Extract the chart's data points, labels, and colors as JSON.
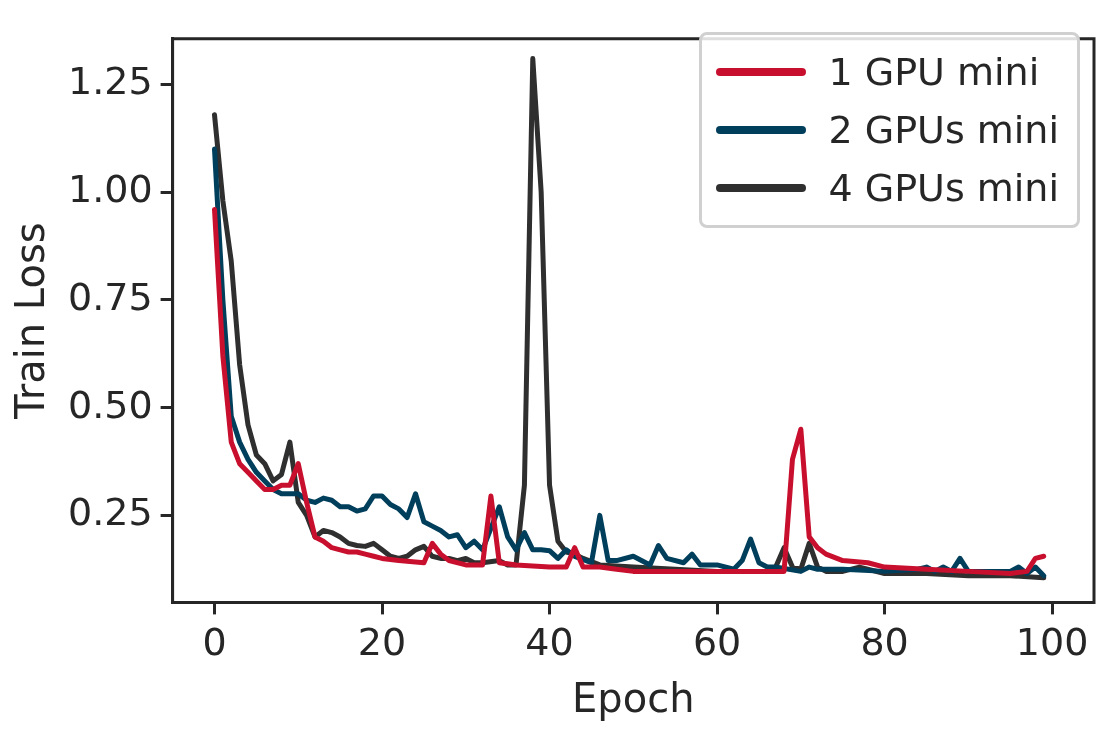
{
  "chart_data": {
    "type": "line",
    "xlabel": "Epoch",
    "ylabel": "Train Loss",
    "xlim": [
      -5,
      105
    ],
    "xticks": [
      0,
      20,
      40,
      60,
      80,
      100
    ],
    "ylim": [
      0.048,
      1.356
    ],
    "yticks": [
      {
        "value": 0.25,
        "label": "0.25"
      },
      {
        "value": 0.5,
        "label": "0.50"
      },
      {
        "value": 0.75,
        "label": "0.75"
      },
      {
        "value": 1,
        "label": "1.00"
      },
      {
        "value": 1.25,
        "label": "1.25"
      }
    ],
    "grid": false,
    "legend": "top right",
    "marker": "none",
    "line_style": "solid",
    "series": [
      {
        "name": "1 GPU mini",
        "color": "#c8102e",
        "x": [
          0,
          1,
          2,
          3,
          4,
          5,
          6,
          7,
          8,
          9,
          10,
          11,
          12,
          13,
          14,
          15,
          16,
          17,
          18,
          19,
          20,
          22,
          25,
          26,
          27,
          28,
          30,
          32,
          33,
          34,
          36,
          40,
          42,
          43,
          44,
          46,
          48,
          50,
          60,
          68,
          69,
          70,
          71,
          72,
          73,
          75,
          78,
          80,
          85,
          90,
          95,
          97,
          98,
          99
        ],
        "values": [
          0.96,
          0.62,
          0.42,
          0.37,
          0.35,
          0.33,
          0.31,
          0.31,
          0.32,
          0.32,
          0.37,
          0.28,
          0.2,
          0.19,
          0.175,
          0.17,
          0.165,
          0.165,
          0.16,
          0.155,
          0.15,
          0.145,
          0.14,
          0.185,
          0.16,
          0.145,
          0.135,
          0.135,
          0.295,
          0.14,
          0.135,
          0.13,
          0.13,
          0.175,
          0.13,
          0.13,
          0.125,
          0.12,
          0.12,
          0.12,
          0.38,
          0.45,
          0.2,
          0.175,
          0.16,
          0.145,
          0.14,
          0.13,
          0.125,
          0.12,
          0.115,
          0.12,
          0.15,
          0.155
        ]
      },
      {
        "name": "2 GPUs mini",
        "color": "#003f5c",
        "x": [
          0,
          1,
          2,
          3,
          4,
          5,
          6,
          7,
          8,
          9,
          10,
          11,
          12,
          13,
          14,
          15,
          16,
          17,
          18,
          19,
          20,
          21,
          22,
          23,
          24,
          25,
          26,
          27,
          28,
          29,
          30,
          31,
          32,
          33,
          34,
          35,
          36,
          37,
          38,
          39,
          40,
          41,
          42,
          43,
          45,
          46,
          47,
          48,
          50,
          52,
          53,
          54,
          56,
          57,
          58,
          60,
          62,
          63,
          64,
          65,
          66,
          67,
          70,
          71,
          72,
          75,
          80,
          84,
          85,
          86,
          87,
          88,
          89,
          90,
          95,
          96,
          97,
          98,
          99
        ],
        "values": [
          1.1,
          0.75,
          0.48,
          0.42,
          0.38,
          0.35,
          0.33,
          0.31,
          0.3,
          0.3,
          0.3,
          0.285,
          0.28,
          0.29,
          0.285,
          0.27,
          0.27,
          0.26,
          0.265,
          0.295,
          0.295,
          0.275,
          0.265,
          0.245,
          0.3,
          0.235,
          0.225,
          0.215,
          0.2,
          0.205,
          0.175,
          0.19,
          0.17,
          0.22,
          0.27,
          0.2,
          0.17,
          0.21,
          0.17,
          0.17,
          0.168,
          0.15,
          0.17,
          0.155,
          0.14,
          0.25,
          0.145,
          0.145,
          0.155,
          0.135,
          0.18,
          0.15,
          0.14,
          0.16,
          0.135,
          0.135,
          0.125,
          0.145,
          0.195,
          0.14,
          0.13,
          0.13,
          0.12,
          0.13,
          0.125,
          0.125,
          0.12,
          0.125,
          0.13,
          0.12,
          0.13,
          0.12,
          0.15,
          0.12,
          0.12,
          0.13,
          0.115,
          0.13,
          0.11
        ]
      },
      {
        "name": "4 GPUs mini",
        "color": "#2f2f2f",
        "x": [
          0,
          1,
          2,
          3,
          4,
          5,
          6,
          7,
          8,
          9,
          10,
          11,
          12,
          13,
          14,
          15,
          16,
          17,
          18,
          19,
          20,
          21,
          22,
          23,
          24,
          25,
          26,
          27,
          28,
          29,
          30,
          31,
          32,
          34,
          35,
          36,
          37,
          38,
          39,
          40,
          41,
          42,
          43,
          44,
          46,
          50,
          55,
          60,
          66,
          67,
          68,
          69,
          70,
          71,
          72,
          73,
          75,
          77,
          80,
          85,
          90,
          95,
          99
        ],
        "values": [
          1.18,
          0.98,
          0.84,
          0.6,
          0.46,
          0.39,
          0.37,
          0.33,
          0.345,
          0.42,
          0.28,
          0.25,
          0.2,
          0.215,
          0.21,
          0.2,
          0.185,
          0.18,
          0.178,
          0.185,
          0.17,
          0.155,
          0.15,
          0.155,
          0.17,
          0.178,
          0.155,
          0.15,
          0.15,
          0.145,
          0.15,
          0.14,
          0.14,
          0.145,
          0.135,
          0.135,
          0.32,
          1.31,
          1.0,
          0.32,
          0.19,
          0.165,
          0.16,
          0.15,
          0.135,
          0.13,
          0.125,
          0.12,
          0.12,
          0.13,
          0.175,
          0.13,
          0.125,
          0.185,
          0.13,
          0.12,
          0.12,
          0.13,
          0.115,
          0.115,
          0.11,
          0.11,
          0.105
        ]
      }
    ]
  }
}
